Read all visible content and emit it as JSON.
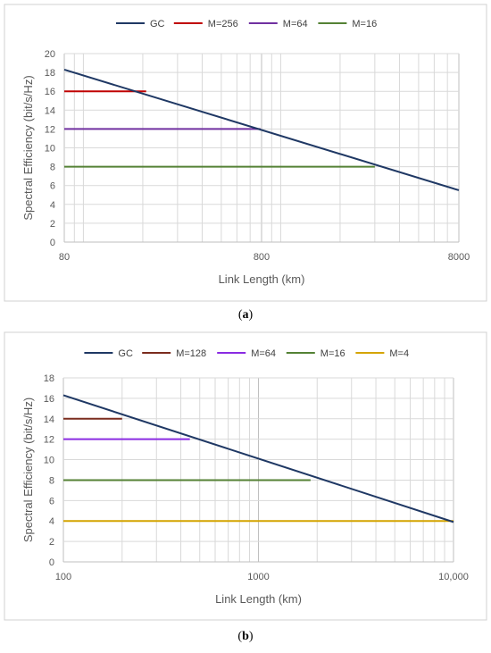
{
  "chart_data": [
    {
      "type": "line",
      "panel_label": "a",
      "xlabel": "Link Length (km)",
      "ylabel": "Spectral Efficiency (bit/s/Hz)",
      "x_scale": "log",
      "xlim": [
        80,
        8000
      ],
      "x_ticks": [
        "80",
        "800",
        "8000"
      ],
      "ylim": [
        0,
        20
      ],
      "y_ticks": [
        "0",
        "2",
        "4",
        "6",
        "8",
        "10",
        "12",
        "14",
        "16",
        "18",
        "20"
      ],
      "grid": true,
      "legend_position": "top",
      "series": [
        {
          "name": "GC",
          "color": "#1f3864",
          "x": [
            80,
            8000
          ],
          "y": [
            18.3,
            5.5
          ]
        },
        {
          "name": "M=256",
          "color": "#c00000",
          "x": [
            80,
            208
          ],
          "y": [
            16,
            16
          ]
        },
        {
          "name": "M=64",
          "color": "#7030a0",
          "x": [
            80,
            790
          ],
          "y": [
            12,
            12
          ]
        },
        {
          "name": "M=16",
          "color": "#548235",
          "x": [
            80,
            3000
          ],
          "y": [
            8,
            8
          ]
        }
      ]
    },
    {
      "type": "line",
      "panel_label": "b",
      "xlabel": "Link Length (km)",
      "ylabel": "Spectral Efficiency (bit/s/Hz)",
      "x_scale": "log",
      "xlim": [
        100,
        10000
      ],
      "x_ticks": [
        "100",
        "1000",
        "10,000"
      ],
      "ylim": [
        0,
        18
      ],
      "y_ticks": [
        "0",
        "2",
        "4",
        "6",
        "8",
        "10",
        "12",
        "14",
        "16",
        "18"
      ],
      "grid": true,
      "legend_position": "top",
      "series": [
        {
          "name": "GC",
          "color": "#1f3864",
          "x": [
            100,
            10000
          ],
          "y": [
            16.3,
            3.9
          ]
        },
        {
          "name": "M=128",
          "color": "#7b2c1e",
          "x": [
            100,
            200
          ],
          "y": [
            14,
            14
          ]
        },
        {
          "name": "M=64",
          "color": "#8a2be2",
          "x": [
            100,
            445
          ],
          "y": [
            12,
            12
          ]
        },
        {
          "name": "M=16",
          "color": "#548235",
          "x": [
            100,
            1850
          ],
          "y": [
            8,
            8
          ]
        },
        {
          "name": "M=4",
          "color": "#d4a400",
          "x": [
            100,
            10000
          ],
          "y": [
            4,
            4
          ]
        }
      ]
    }
  ]
}
